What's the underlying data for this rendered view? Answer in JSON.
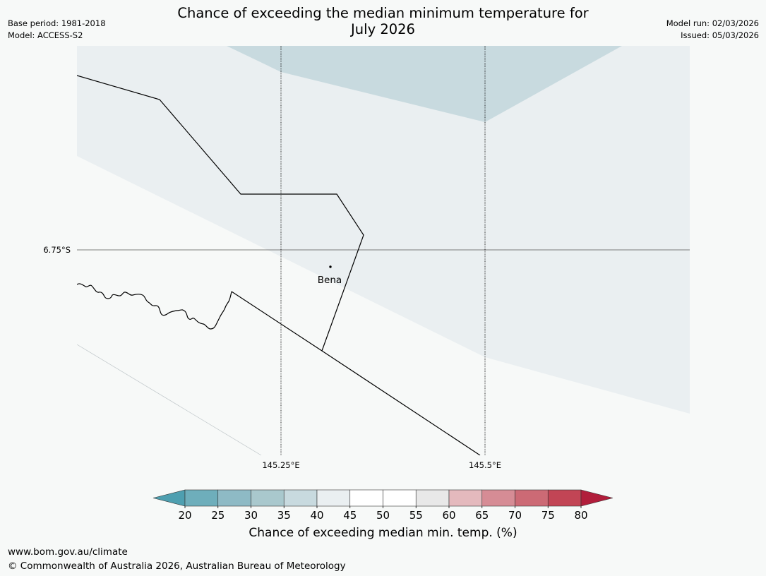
{
  "header": {
    "base_period": "Base period: 1981-2018",
    "model": "Model: ACCESS-S2",
    "title_line1": "Chance of exceeding the median minimum temperature for",
    "title_line2": "July 2026",
    "model_run": "Model run: 02/03/2026",
    "issued": "Issued: 05/03/2026"
  },
  "map": {
    "latitude_label": "6.75°S",
    "longitude_labels": [
      "145.25°E",
      "145.5°E"
    ],
    "place": "Bena",
    "colors": {
      "zone_35_40": "#c8dadf",
      "zone_40_45": "#eaeff1",
      "zone_45_55": "#f7f9f8",
      "boundary": "#000000",
      "gridline": "#000000"
    }
  },
  "colorbar": {
    "ticks": [
      "20",
      "25",
      "30",
      "35",
      "40",
      "45",
      "50",
      "55",
      "60",
      "65",
      "70",
      "75",
      "80"
    ],
    "segment_colors": [
      "#4e9fb0",
      "#6eaebb",
      "#8ebac5",
      "#a9c8cd",
      "#c8dadf",
      "#eaeff1",
      "#ffffff",
      "#ffffff",
      "#e8e8e8",
      "#e4b9bd",
      "#d68c95",
      "#cc6a75",
      "#c24555",
      "#b11e3b"
    ],
    "label": "Chance of exceeding median min. temp. (%)"
  },
  "footer": {
    "url": "www.bom.gov.au/climate",
    "copyright": "© Commonwealth of Australia 2026, Australian Bureau of Meteorology"
  }
}
